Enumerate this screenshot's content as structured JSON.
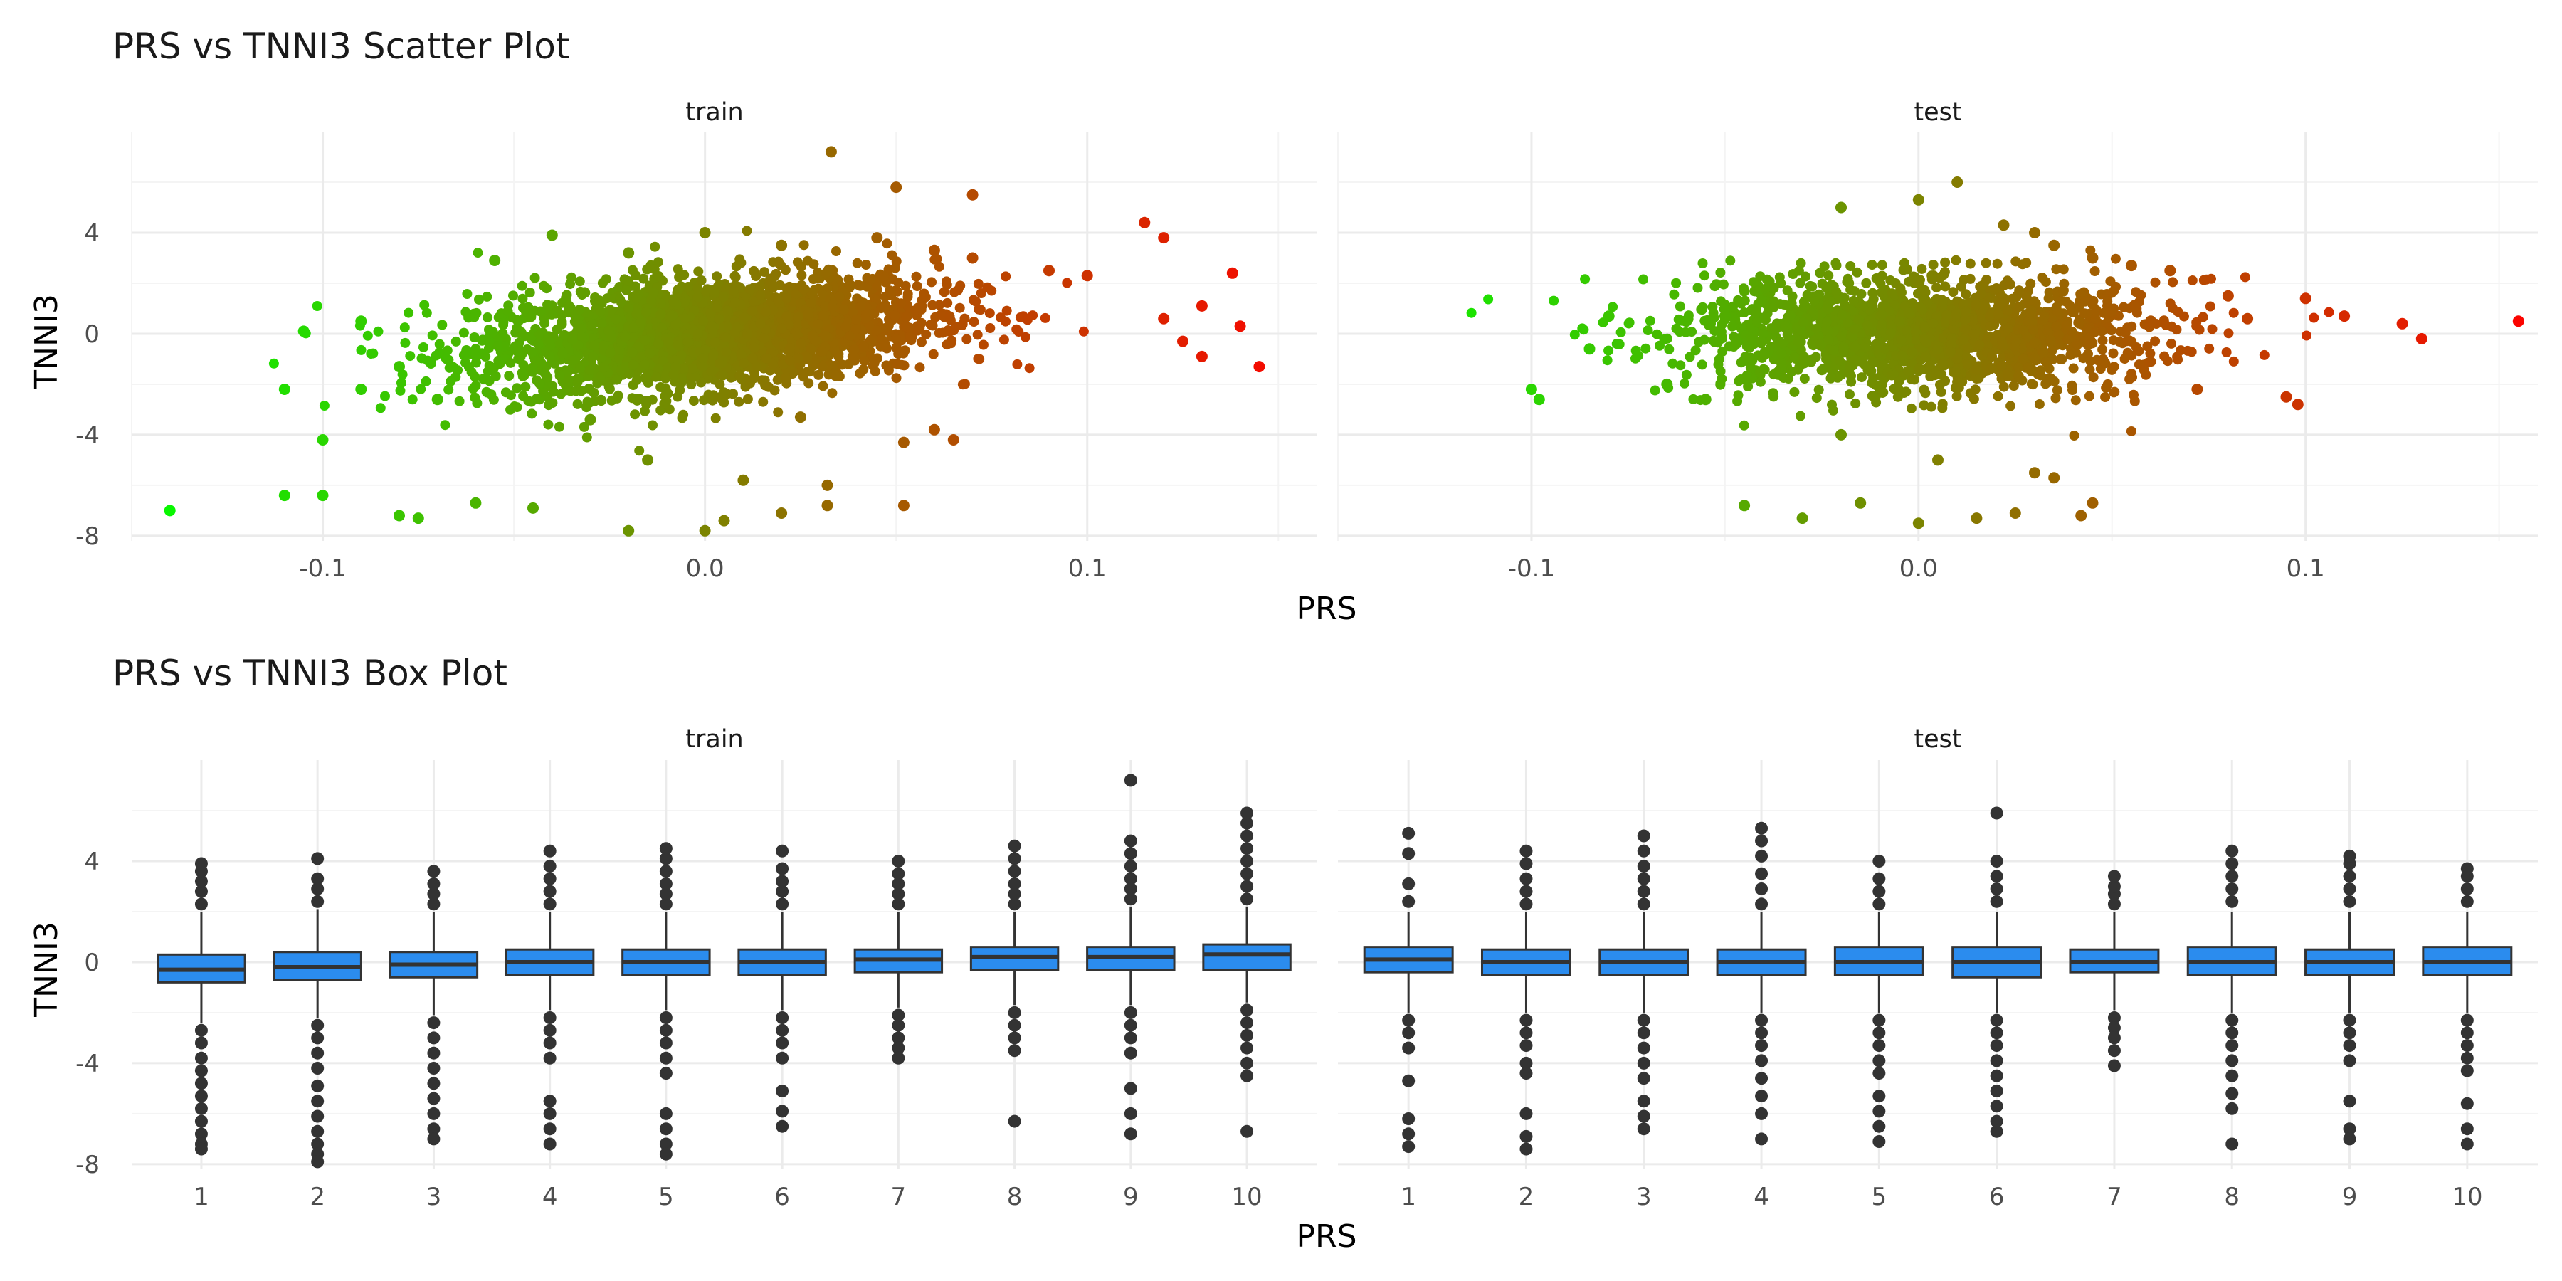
{
  "chart_data": [
    {
      "type": "scatter",
      "title": "PRS vs TNNI3 Scatter Plot",
      "xlabel": "PRS",
      "ylabel": "TNNI3",
      "xlim": [
        -0.15,
        0.16
      ],
      "ylim": [
        -8.2,
        8.0
      ],
      "x_ticks": [
        "-0.1",
        "0.0",
        "0.1"
      ],
      "x_tick_values": [
        -0.1,
        0.0,
        0.1
      ],
      "y_ticks": [
        "4",
        "0",
        "-4",
        "-8"
      ],
      "y_tick_values": [
        4,
        0,
        -4,
        -8
      ],
      "color_scale": {
        "low": "#00ff00",
        "high": "#ff0000",
        "variable": "PRS"
      },
      "grid": true,
      "legend": "none",
      "facets": [
        {
          "label": "train",
          "points": [
            [
              -0.14,
              -7.0
            ],
            [
              0.145,
              -1.3
            ],
            [
              0.138,
              2.4
            ],
            [
              0.033,
              7.2
            ],
            [
              0.05,
              5.8
            ],
            [
              0.07,
              5.5
            ],
            [
              0.115,
              4.4
            ],
            [
              0.12,
              3.8
            ],
            [
              -0.11,
              -6.4
            ],
            [
              -0.1,
              -6.4
            ],
            [
              -0.1,
              -4.2
            ],
            [
              -0.11,
              -2.2
            ],
            [
              -0.105,
              0.1
            ],
            [
              -0.08,
              -7.2
            ],
            [
              -0.075,
              -7.3
            ],
            [
              -0.06,
              -6.7
            ],
            [
              -0.045,
              -6.9
            ],
            [
              -0.02,
              -7.8
            ],
            [
              0.0,
              -7.8
            ],
            [
              0.005,
              -7.4
            ],
            [
              0.02,
              -7.1
            ],
            [
              0.032,
              -6.8
            ],
            [
              0.052,
              -6.8
            ],
            [
              0.06,
              -3.8
            ],
            [
              0.065,
              -4.2
            ],
            [
              0.052,
              -4.3
            ],
            [
              0.032,
              -6.0
            ],
            [
              0.045,
              3.8
            ],
            [
              0.06,
              3.3
            ],
            [
              0.07,
              3.0
            ],
            [
              0.09,
              2.5
            ],
            [
              0.1,
              2.3
            ],
            [
              0.13,
              1.1
            ],
            [
              0.14,
              0.3
            ],
            [
              0.125,
              -0.3
            ],
            [
              0.13,
              -0.9
            ],
            [
              0.12,
              0.6
            ],
            [
              -0.055,
              2.9
            ],
            [
              -0.04,
              3.9
            ],
            [
              -0.02,
              3.2
            ],
            [
              0.0,
              4.0
            ],
            [
              0.02,
              3.5
            ],
            [
              -0.09,
              0.5
            ],
            [
              -0.08,
              -1.3
            ],
            [
              -0.07,
              -2.6
            ],
            [
              -0.09,
              -2.2
            ],
            [
              -0.03,
              -3.4
            ],
            [
              -0.015,
              -5.0
            ],
            [
              0.01,
              -5.8
            ],
            [
              0.025,
              -3.3
            ]
          ]
        },
        {
          "label": "test",
          "points": [
            [
              -0.1,
              -2.2
            ],
            [
              -0.098,
              -2.6
            ],
            [
              0.155,
              0.5
            ],
            [
              0.13,
              -0.2
            ],
            [
              0.125,
              0.4
            ],
            [
              0.11,
              0.7
            ],
            [
              0.1,
              1.4
            ],
            [
              0.08,
              1.5
            ],
            [
              0.065,
              2.5
            ],
            [
              0.072,
              -2.2
            ],
            [
              0.095,
              -2.5
            ],
            [
              0.098,
              -2.8
            ],
            [
              0.01,
              6.0
            ],
            [
              0.0,
              5.3
            ],
            [
              -0.02,
              5.0
            ],
            [
              0.022,
              4.3
            ],
            [
              0.03,
              4.0
            ],
            [
              0.035,
              3.5
            ],
            [
              0.045,
              3.0
            ],
            [
              0.055,
              2.7
            ],
            [
              -0.045,
              -6.8
            ],
            [
              -0.03,
              -7.3
            ],
            [
              -0.015,
              -6.7
            ],
            [
              0.0,
              -7.5
            ],
            [
              0.015,
              -7.3
            ],
            [
              0.025,
              -7.1
            ],
            [
              0.042,
              -7.2
            ],
            [
              0.045,
              -6.7
            ],
            [
              0.03,
              -5.5
            ],
            [
              0.035,
              -5.7
            ],
            [
              -0.085,
              -0.6
            ],
            [
              -0.08,
              0.7
            ],
            [
              -0.06,
              0.5
            ],
            [
              -0.055,
              -2.6
            ],
            [
              -0.065,
              -2.0
            ],
            [
              -0.05,
              0.7
            ],
            [
              0.06,
              0.5
            ],
            [
              0.085,
              0.6
            ],
            [
              -0.02,
              -4.0
            ],
            [
              0.005,
              -5.0
            ]
          ]
        }
      ]
    },
    {
      "type": "box",
      "title": "PRS vs TNNI3 Box Plot",
      "xlabel": "PRS",
      "ylabel": "TNNI3",
      "categories": [
        "1",
        "2",
        "3",
        "4",
        "5",
        "6",
        "7",
        "8",
        "9",
        "10"
      ],
      "ylim": [
        -8.2,
        8.0
      ],
      "y_ticks": [
        "4",
        "0",
        "-4",
        "-8"
      ],
      "y_tick_values": [
        4,
        0,
        -4,
        -8
      ],
      "box_color": "#2b8cee",
      "outline_color": "#333333",
      "outlier_color": "#333333",
      "grid": true,
      "facets": [
        {
          "label": "train",
          "boxes": [
            {
              "q1": -0.8,
              "median": -0.3,
              "q3": 0.3,
              "whisker_low": -2.4,
              "whisker_high": 2.0,
              "outliers_high": [
                2.3,
                2.8,
                3.2,
                3.6,
                3.9
              ],
              "outliers_low": [
                -2.7,
                -3.2,
                -3.8,
                -4.3,
                -4.8,
                -5.3,
                -5.8,
                -6.3,
                -6.8,
                -7.2,
                -7.4
              ]
            },
            {
              "q1": -0.7,
              "median": -0.2,
              "q3": 0.4,
              "whisker_low": -2.2,
              "whisker_high": 2.1,
              "outliers_high": [
                2.4,
                2.9,
                3.3,
                4.1
              ],
              "outliers_low": [
                -2.5,
                -3.0,
                -3.6,
                -4.2,
                -4.9,
                -5.5,
                -6.1,
                -6.7,
                -7.2,
                -7.6,
                -7.9
              ]
            },
            {
              "q1": -0.6,
              "median": -0.1,
              "q3": 0.4,
              "whisker_low": -2.1,
              "whisker_high": 2.0,
              "outliers_high": [
                2.3,
                2.7,
                3.1,
                3.6
              ],
              "outliers_low": [
                -2.4,
                -3.0,
                -3.6,
                -4.2,
                -4.8,
                -5.4,
                -6.0,
                -6.6,
                -7.0
              ]
            },
            {
              "q1": -0.5,
              "median": 0.0,
              "q3": 0.5,
              "whisker_low": -1.9,
              "whisker_high": 2.0,
              "outliers_high": [
                2.3,
                2.8,
                3.3,
                3.8,
                4.4
              ],
              "outliers_low": [
                -2.2,
                -2.7,
                -3.2,
                -3.8,
                -5.5,
                -6.0,
                -6.6,
                -7.2
              ]
            },
            {
              "q1": -0.5,
              "median": 0.0,
              "q3": 0.5,
              "whisker_low": -1.9,
              "whisker_high": 2.0,
              "outliers_high": [
                2.3,
                2.7,
                3.1,
                3.6,
                4.1,
                4.5
              ],
              "outliers_low": [
                -2.2,
                -2.7,
                -3.2,
                -3.8,
                -4.4,
                -6.0,
                -6.6,
                -7.2,
                -7.6
              ]
            },
            {
              "q1": -0.5,
              "median": 0.0,
              "q3": 0.5,
              "whisker_low": -1.9,
              "whisker_high": 2.0,
              "outliers_high": [
                2.3,
                2.8,
                3.2,
                3.7,
                4.4
              ],
              "outliers_low": [
                -2.2,
                -2.7,
                -3.2,
                -3.8,
                -5.1,
                -5.9,
                -6.5
              ]
            },
            {
              "q1": -0.4,
              "median": 0.1,
              "q3": 0.5,
              "whisker_low": -1.8,
              "whisker_high": 2.0,
              "outliers_high": [
                2.3,
                2.7,
                3.1,
                3.5,
                4.0
              ],
              "outliers_low": [
                -2.1,
                -2.5,
                -3.0,
                -3.4,
                -3.8
              ]
            },
            {
              "q1": -0.3,
              "median": 0.2,
              "q3": 0.6,
              "whisker_low": -1.7,
              "whisker_high": 2.0,
              "outliers_high": [
                2.3,
                2.7,
                3.1,
                3.6,
                4.1,
                4.6
              ],
              "outliers_low": [
                -2.0,
                -2.5,
                -3.0,
                -3.5,
                -6.3
              ]
            },
            {
              "q1": -0.3,
              "median": 0.2,
              "q3": 0.6,
              "whisker_low": -1.7,
              "whisker_high": 2.2,
              "outliers_high": [
                2.5,
                2.9,
                3.3,
                3.8,
                4.3,
                4.8,
                7.2
              ],
              "outliers_low": [
                -2.0,
                -2.5,
                -3.0,
                -3.6,
                -5.0,
                -6.0,
                -6.8
              ]
            },
            {
              "q1": -0.3,
              "median": 0.3,
              "q3": 0.7,
              "whisker_low": -1.6,
              "whisker_high": 2.2,
              "outliers_high": [
                2.5,
                3.0,
                3.5,
                4.0,
                4.5,
                5.0,
                5.5,
                5.9
              ],
              "outliers_low": [
                -1.9,
                -2.4,
                -2.9,
                -3.4,
                -4.0,
                -4.5,
                -6.7
              ]
            }
          ]
        },
        {
          "label": "test",
          "boxes": [
            {
              "q1": -0.4,
              "median": 0.1,
              "q3": 0.6,
              "whisker_low": -2.0,
              "whisker_high": 2.0,
              "outliers_high": [
                2.4,
                3.1,
                4.3,
                5.1
              ],
              "outliers_low": [
                -2.3,
                -2.8,
                -3.4,
                -4.7,
                -6.2,
                -6.8,
                -7.3
              ]
            },
            {
              "q1": -0.5,
              "median": 0.0,
              "q3": 0.5,
              "whisker_low": -2.0,
              "whisker_high": 2.0,
              "outliers_high": [
                2.3,
                2.8,
                3.3,
                3.9,
                4.4
              ],
              "outliers_low": [
                -2.3,
                -2.8,
                -3.3,
                -4.0,
                -4.4,
                -6.0,
                -6.9,
                -7.4
              ]
            },
            {
              "q1": -0.5,
              "median": 0.0,
              "q3": 0.5,
              "whisker_low": -2.0,
              "whisker_high": 2.0,
              "outliers_high": [
                2.3,
                2.8,
                3.3,
                3.8,
                4.4,
                5.0
              ],
              "outliers_low": [
                -2.3,
                -2.8,
                -3.4,
                -4.0,
                -4.6,
                -5.5,
                -6.1,
                -6.6
              ]
            },
            {
              "q1": -0.5,
              "median": 0.0,
              "q3": 0.5,
              "whisker_low": -2.0,
              "whisker_high": 2.0,
              "outliers_high": [
                2.3,
                2.9,
                3.5,
                4.2,
                4.8,
                5.3
              ],
              "outliers_low": [
                -2.3,
                -2.8,
                -3.3,
                -3.9,
                -4.6,
                -5.3,
                -6.0,
                -7.0
              ]
            },
            {
              "q1": -0.5,
              "median": 0.0,
              "q3": 0.6,
              "whisker_low": -2.0,
              "whisker_high": 2.0,
              "outliers_high": [
                2.3,
                2.8,
                3.3,
                4.0
              ],
              "outliers_low": [
                -2.3,
                -2.8,
                -3.3,
                -3.9,
                -4.4,
                -5.3,
                -5.9,
                -6.5,
                -7.1
              ]
            },
            {
              "q1": -0.6,
              "median": 0.0,
              "q3": 0.6,
              "whisker_low": -2.0,
              "whisker_high": 2.0,
              "outliers_high": [
                2.4,
                2.9,
                3.4,
                4.0,
                5.9
              ],
              "outliers_low": [
                -2.3,
                -2.8,
                -3.3,
                -3.9,
                -4.5,
                -5.1,
                -5.7,
                -6.3,
                -6.7
              ]
            },
            {
              "q1": -0.4,
              "median": 0.0,
              "q3": 0.5,
              "whisker_low": -1.9,
              "whisker_high": 2.0,
              "outliers_high": [
                2.3,
                2.7,
                3.0,
                3.4
              ],
              "outliers_low": [
                -2.2,
                -2.6,
                -3.0,
                -3.5,
                -4.1
              ]
            },
            {
              "q1": -0.5,
              "median": 0.0,
              "q3": 0.6,
              "whisker_low": -2.0,
              "whisker_high": 2.0,
              "outliers_high": [
                2.4,
                2.9,
                3.4,
                3.9,
                4.4
              ],
              "outliers_low": [
                -2.3,
                -2.8,
                -3.3,
                -3.9,
                -4.5,
                -5.2,
                -5.8,
                -7.2
              ]
            },
            {
              "q1": -0.5,
              "median": 0.0,
              "q3": 0.5,
              "whisker_low": -2.0,
              "whisker_high": 2.0,
              "outliers_high": [
                2.4,
                2.9,
                3.4,
                3.9,
                4.2
              ],
              "outliers_low": [
                -2.3,
                -2.8,
                -3.3,
                -3.9,
                -5.5,
                -6.6,
                -7.0
              ]
            },
            {
              "q1": -0.5,
              "median": 0.0,
              "q3": 0.6,
              "whisker_low": -2.0,
              "whisker_high": 2.0,
              "outliers_high": [
                2.4,
                2.9,
                3.4,
                3.7
              ],
              "outliers_low": [
                -2.3,
                -2.8,
                -3.3,
                -3.8,
                -4.3,
                -5.6,
                -6.6,
                -7.2
              ]
            }
          ]
        }
      ]
    }
  ]
}
